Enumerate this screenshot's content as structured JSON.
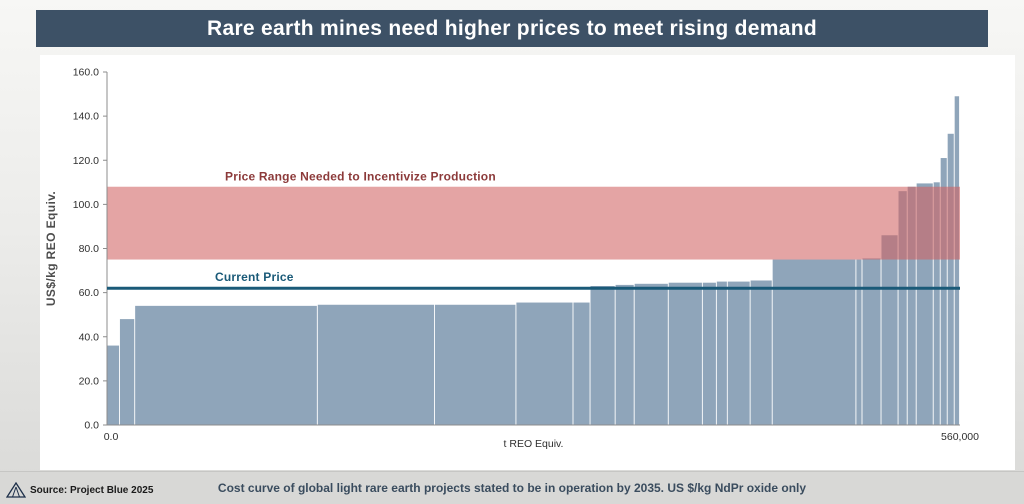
{
  "title": "Rare earth mines need higher prices to meet rising demand",
  "footer": {
    "source": "Source: Project Blue 2025",
    "caption": "Cost curve of global light rare earth projects stated to be in operation by 2035. US $/kg NdPr oxide only"
  },
  "colors": {
    "title_bg": "#3d5166",
    "bar": "#8fa5ba",
    "band": "#d06262",
    "band_label": "#8c3a3a",
    "price_line": "#1a5a78",
    "price_label": "#1a5a78",
    "axis": "#8c8c8c"
  },
  "chart_data": {
    "type": "bar",
    "title": "Rare earth mines need higher prices to meet rising demand",
    "xlabel": "t REO Equiv.",
    "ylabel": "US$/kg REO Equiv.",
    "ylim": [
      0,
      160
    ],
    "y_tick_step": 20,
    "y_tick_labels": [
      "0.0",
      "20.0",
      "40.0",
      "60.0",
      "80.0",
      "100.0",
      "120.0",
      "140.0",
      "160.0"
    ],
    "x_tick_labels": [
      "0.0",
      "560,000"
    ],
    "current_price": {
      "value": 62,
      "label": "Current Price"
    },
    "price_band": {
      "low": 75,
      "high": 108,
      "label": "Price Range Needed to Incentivize Production"
    },
    "bars": [
      {
        "width_t": 8500,
        "price": 36
      },
      {
        "width_t": 10000,
        "price": 48
      },
      {
        "width_t": 120000,
        "price": 54
      },
      {
        "width_t": 77000,
        "price": 54.5
      },
      {
        "width_t": 53500,
        "price": 54.5
      },
      {
        "width_t": 37500,
        "price": 55.5
      },
      {
        "width_t": 11200,
        "price": 55.5
      },
      {
        "width_t": 16500,
        "price": 63
      },
      {
        "width_t": 12500,
        "price": 63.5
      },
      {
        "width_t": 22400,
        "price": 64
      },
      {
        "width_t": 22400,
        "price": 64.5
      },
      {
        "width_t": 9200,
        "price": 64.5
      },
      {
        "width_t": 7200,
        "price": 65
      },
      {
        "width_t": 15000,
        "price": 65
      },
      {
        "width_t": 14500,
        "price": 65.5
      },
      {
        "width_t": 55000,
        "price": 75
      },
      {
        "width_t": 4000,
        "price": 75
      },
      {
        "width_t": 12500,
        "price": 75.5
      },
      {
        "width_t": 11200,
        "price": 86
      },
      {
        "width_t": 6000,
        "price": 106
      },
      {
        "width_t": 5900,
        "price": 108
      },
      {
        "width_t": 11200,
        "price": 109.5
      },
      {
        "width_t": 4600,
        "price": 110
      },
      {
        "width_t": 4600,
        "price": 121
      },
      {
        "width_t": 4600,
        "price": 132
      },
      {
        "width_t": 3500,
        "price": 149
      }
    ]
  }
}
